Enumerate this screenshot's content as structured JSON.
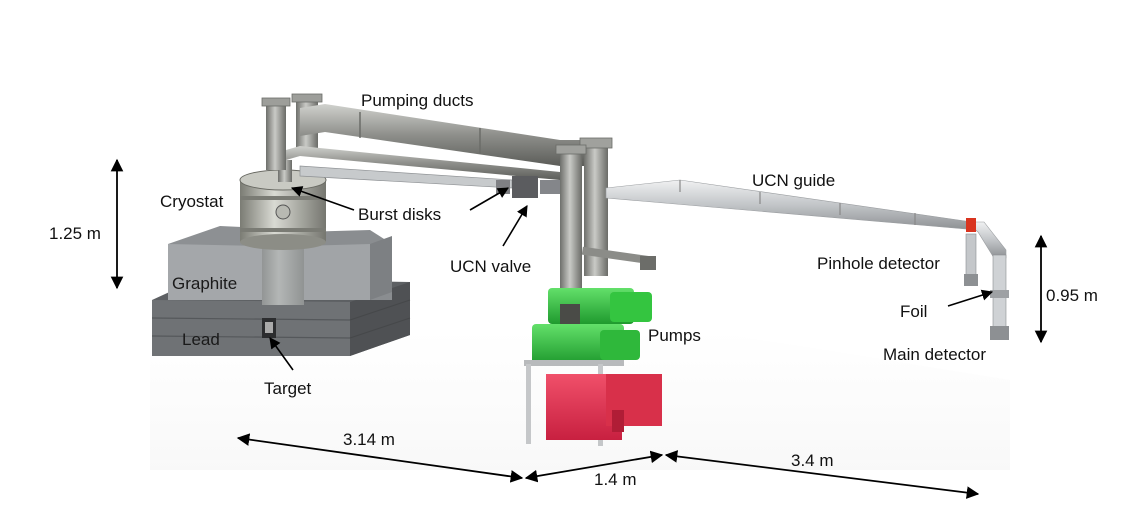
{
  "labels": {
    "pumping_ducts": "Pumping ducts",
    "cryostat": "Cryostat",
    "burst_disks": "Burst disks",
    "ucn_guide": "UCN guide",
    "ucn_valve": "UCN valve",
    "graphite": "Graphite",
    "lead": "Lead",
    "target": "Target",
    "pumps": "Pumps",
    "pinhole_detector": "Pinhole detector",
    "foil": "Foil",
    "main_detector": "Main detector"
  },
  "dimensions": {
    "height_cryostat": "1.25 m",
    "height_detector": "0.95 m",
    "length_target_pumps": "3.14 m",
    "length_pumps_width": "1.4 m",
    "length_guide": "3.4 m"
  },
  "colors": {
    "shielding_gray": "#6f7275",
    "shielding_light": "#a4a7aa",
    "steel": "#9b9c98",
    "pump_green": "#2fbf3f",
    "pump_frame_red": "#e0304e",
    "guide_silver": "#c9cccf",
    "foil_red": "#d9341f"
  }
}
